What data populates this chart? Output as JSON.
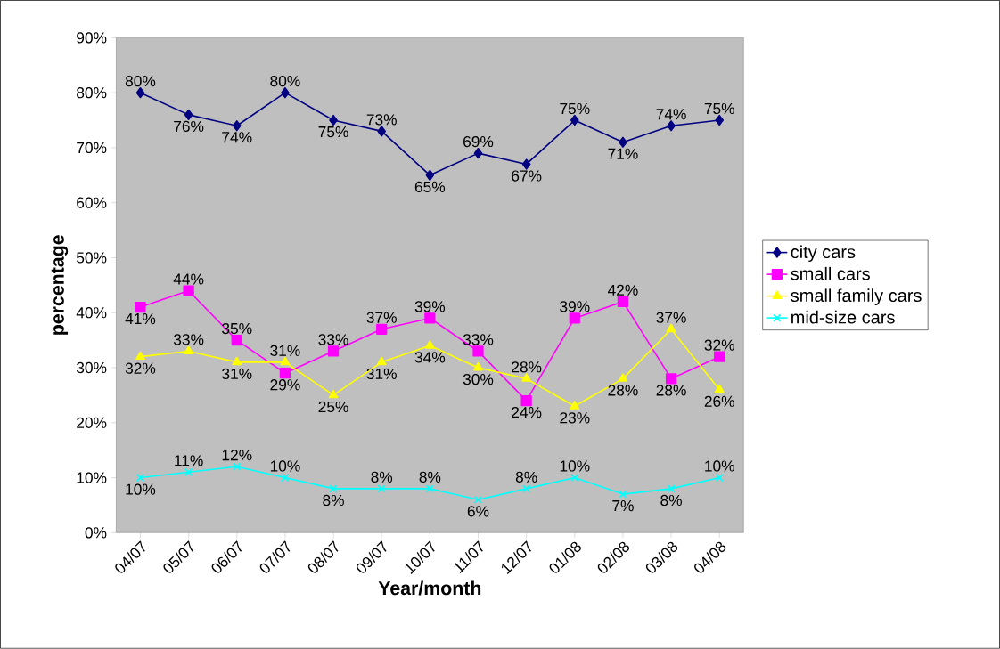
{
  "chart_data": {
    "type": "line",
    "categories": [
      "04/07",
      "05/07",
      "06/07",
      "07/07",
      "08/07",
      "09/07",
      "10/07",
      "11/07",
      "12/07",
      "01/08",
      "02/08",
      "03/08",
      "04/08"
    ],
    "xlabel": "Year/month",
    "ylabel": "percentage",
    "ylim": [
      0,
      90
    ],
    "yticks": [
      {
        "value": 0,
        "label": "0%"
      },
      {
        "value": 10,
        "label": "10%"
      },
      {
        "value": 20,
        "label": "20%"
      },
      {
        "value": 30,
        "label": "30%"
      },
      {
        "value": 40,
        "label": "40%"
      },
      {
        "value": 50,
        "label": "50%"
      },
      {
        "value": 60,
        "label": "60%"
      },
      {
        "value": 70,
        "label": "70%"
      },
      {
        "value": 80,
        "label": "80%"
      },
      {
        "value": 90,
        "label": "90%"
      }
    ],
    "grid": false,
    "legend": "right",
    "line_style": "solid",
    "series": [
      {
        "name": "city cars",
        "color": "#000080",
        "marker": "diamond",
        "values": [
          80,
          76,
          74,
          80,
          75,
          73,
          65,
          69,
          67,
          75,
          71,
          74,
          75
        ],
        "value_labels": [
          "80%",
          "76%",
          "74%",
          "80%",
          "75%",
          "73%",
          "65%",
          "69%",
          "67%",
          "75%",
          "71%",
          "74%",
          "75%"
        ]
      },
      {
        "name": "small cars",
        "color": "#ff00ff",
        "marker": "square",
        "values": [
          41,
          44,
          35,
          29,
          33,
          37,
          39,
          33,
          24,
          39,
          42,
          28,
          32
        ],
        "value_labels": [
          "41%",
          "44%",
          "35%",
          "29%",
          "33%",
          "37%",
          "39%",
          "33%",
          "24%",
          "39%",
          "42%",
          "28%",
          "32%"
        ]
      },
      {
        "name": "small family cars",
        "color": "#ffff00",
        "marker": "triangle",
        "values": [
          32,
          33,
          31,
          31,
          25,
          31,
          34,
          30,
          28,
          23,
          28,
          37,
          26
        ],
        "value_labels": [
          "32%",
          "33%",
          "31%",
          "31%",
          "25%",
          "31%",
          "34%",
          "30%",
          "28%",
          "23%",
          "28%",
          "37%",
          "26%"
        ]
      },
      {
        "name": "mid-size cars",
        "color": "#00ffff",
        "marker": "cross",
        "values": [
          10,
          11,
          12,
          10,
          8,
          8,
          8,
          6,
          8,
          10,
          7,
          8,
          10
        ],
        "value_labels": [
          "10%",
          "11%",
          "12%",
          "10%",
          "8%",
          "8%",
          "8%",
          "6%",
          "8%",
          "10%",
          "7%",
          "8%",
          "10%"
        ]
      }
    ]
  }
}
